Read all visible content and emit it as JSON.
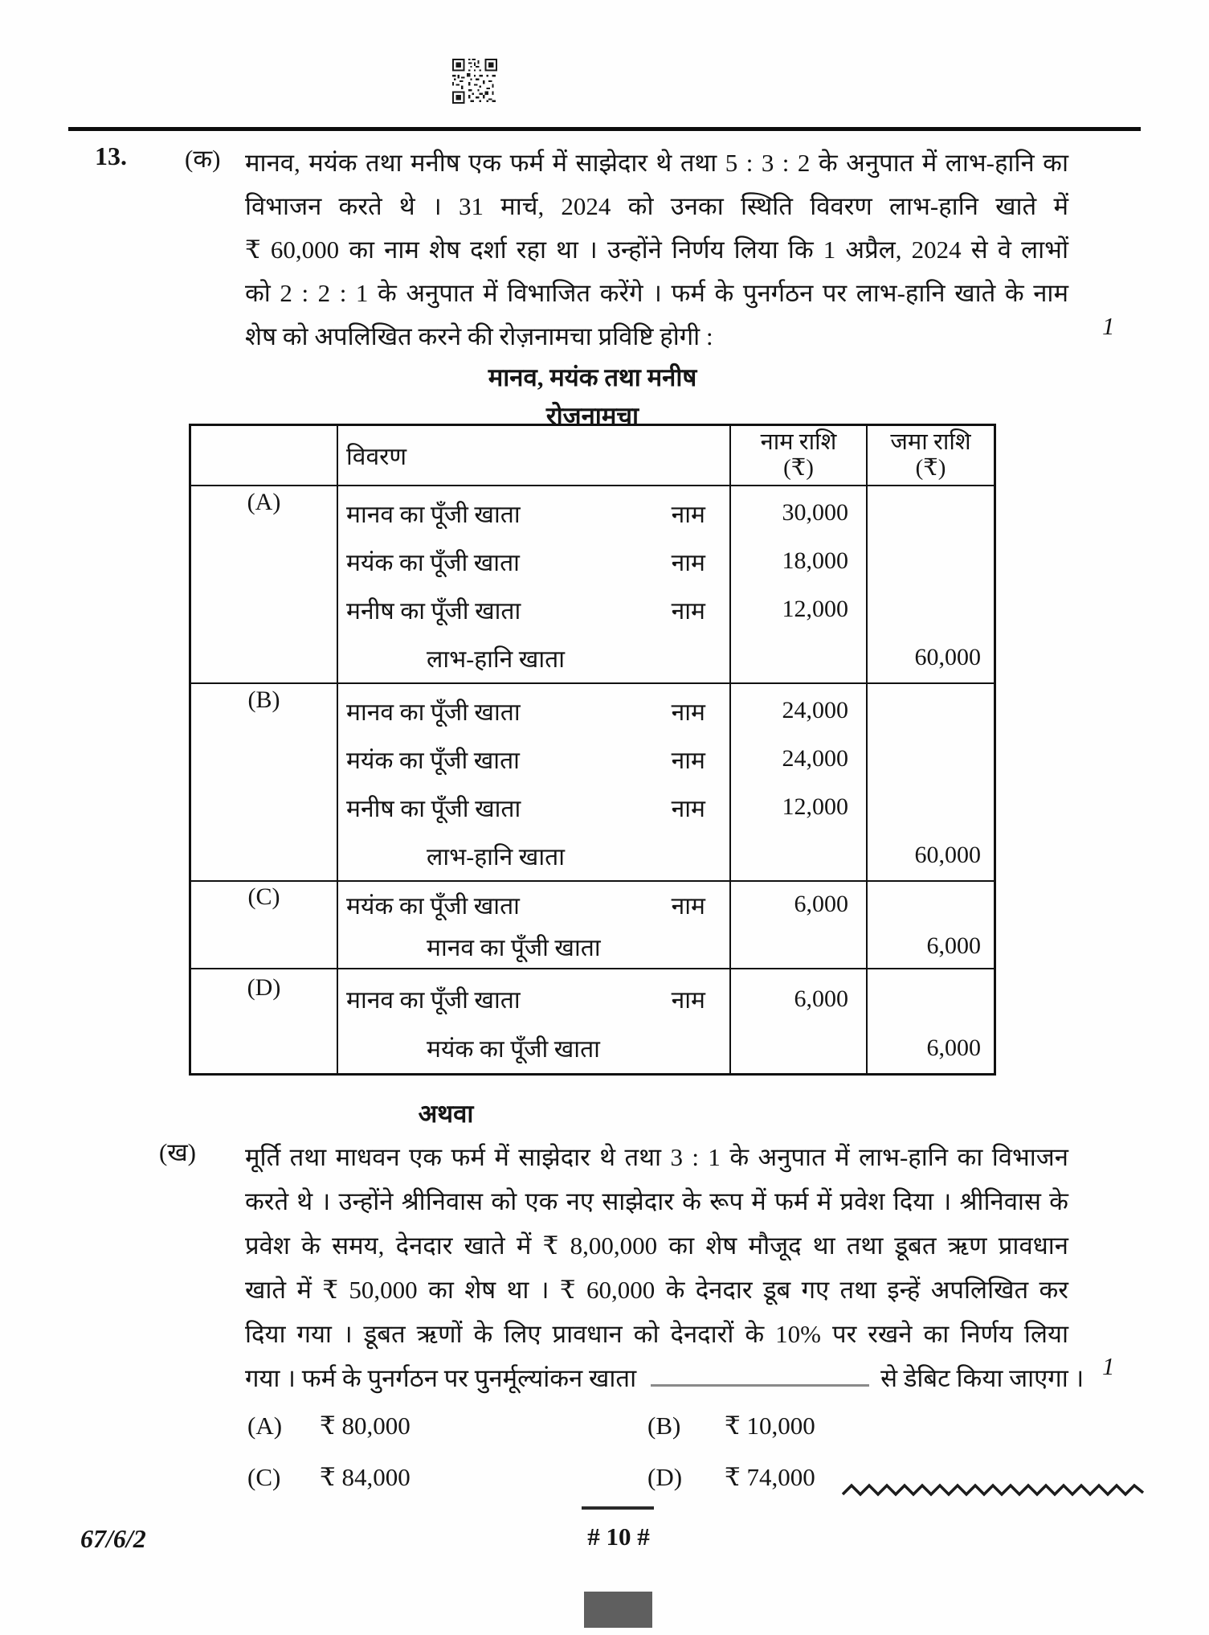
{
  "colors": {
    "ink": "#151515",
    "footer_block": "#5f5f5f"
  },
  "question": {
    "number": "13.",
    "part_a": {
      "label": "(क)",
      "marks": "1",
      "lines": [
        "मानव, मयंक तथा मनीष एक फर्म में साझेदार थे तथा 5 : 3 : 2 के अनुपात में लाभ-हानि का",
        "विभाजन करते थे । 31 मार्च, 2024 को उनका स्थिति विवरण लाभ-हानि खाते में",
        "₹ 60,000 का नाम शेष दर्शा रहा था । उन्होंने निर्णय लिया कि 1 अप्रैल, 2024 से वे लाभों",
        "को 2 : 2 : 1 के अनुपात में विभाजित करेंगे । फर्म के पुनर्गठन पर लाभ-हानि खाते के नाम",
        "शेष को अपलिखित करने की रोज़नामचा प्रविष्टि होगी :"
      ]
    },
    "or_label": "अथवा",
    "part_b": {
      "label": "(ख)",
      "marks": "1",
      "lines": [
        "मूर्ति तथा माधवन एक फर्म में साझेदार थे तथा 3 : 1 के अनुपात में लाभ-हानि का विभाजन",
        "करते थे । उन्होंने श्रीनिवास को एक नए साझेदार के रूप में फर्म में प्रवेश दिया । श्रीनिवास के",
        "प्रवेश के समय, देनदार खाते में ₹  8,00,000  का शेष मौजूद था तथा डूबत ऋण प्रावधान",
        "खाते में ₹  50,000 का शेष था । ₹  60,000  के देनदार डूब गए तथा इन्हें अपलिखित कर",
        "दिया गया । डूबत ऋणों के लिए प्रावधान को देनदारों के 10% पर रखने का निर्णय लिया"
      ],
      "blank_line": {
        "pre": "गया । फर्म के पुनर्गठन पर पुनर्मूल्यांकन खाता",
        "post": "से डेबिट किया जाएगा ।"
      },
      "options": [
        {
          "label": "(A)",
          "value": "₹ 80,000"
        },
        {
          "label": "(B)",
          "value": "₹ 10,000"
        },
        {
          "label": "(C)",
          "value": "₹ 84,000"
        },
        {
          "label": "(D)",
          "value": "₹ 74,000"
        }
      ]
    }
  },
  "journal": {
    "firm_title": "मानव, मयंक तथा मनीष",
    "table_title": "रोज़नामचा",
    "headers": {
      "particulars": "विवरण",
      "debit": "नाम राशि",
      "credit": "जमा राशि",
      "currency": "(₹)"
    },
    "entries": [
      {
        "serial": "(A)",
        "lines": [
          {
            "account": "मानव का पूँजी खाता",
            "dr_label": "नाम",
            "debit": "30,000",
            "credit": "",
            "indent": false
          },
          {
            "account": "मयंक का पूँजी खाता",
            "dr_label": "नाम",
            "debit": "18,000",
            "credit": "",
            "indent": false
          },
          {
            "account": "मनीष का पूँजी खाता",
            "dr_label": "नाम",
            "debit": "12,000",
            "credit": "",
            "indent": false
          },
          {
            "account": "लाभ-हानि खाता",
            "dr_label": "",
            "debit": "",
            "credit": "60,000",
            "indent": true
          }
        ]
      },
      {
        "serial": "(B)",
        "lines": [
          {
            "account": "मानव का पूँजी खाता",
            "dr_label": "नाम",
            "debit": "24,000",
            "credit": "",
            "indent": false
          },
          {
            "account": "मयंक का पूँजी खाता",
            "dr_label": "नाम",
            "debit": "24,000",
            "credit": "",
            "indent": false
          },
          {
            "account": "मनीष का पूँजी खाता",
            "dr_label": "नाम",
            "debit": "12,000",
            "credit": "",
            "indent": false
          },
          {
            "account": "लाभ-हानि खाता",
            "dr_label": "",
            "debit": "",
            "credit": "60,000",
            "indent": true
          }
        ]
      },
      {
        "serial": "(C)",
        "lines": [
          {
            "account": "मयंक का पूँजी खाता",
            "dr_label": "नाम",
            "debit": "6,000",
            "credit": "",
            "indent": false
          },
          {
            "account": "मानव का पूँजी खाता",
            "dr_label": "",
            "debit": "",
            "credit": "6,000",
            "indent": true
          }
        ]
      },
      {
        "serial": "(D)",
        "lines": [
          {
            "account": "मानव का पूँजी खाता",
            "dr_label": "नाम",
            "debit": "6,000",
            "credit": "",
            "indent": false
          },
          {
            "account": "मयंक का पूँजी खाता",
            "dr_label": "",
            "debit": "",
            "credit": "6,000",
            "indent": true
          }
        ]
      }
    ]
  },
  "footer": {
    "paper_code": "67/6/2",
    "page_number": "# 10 #"
  }
}
